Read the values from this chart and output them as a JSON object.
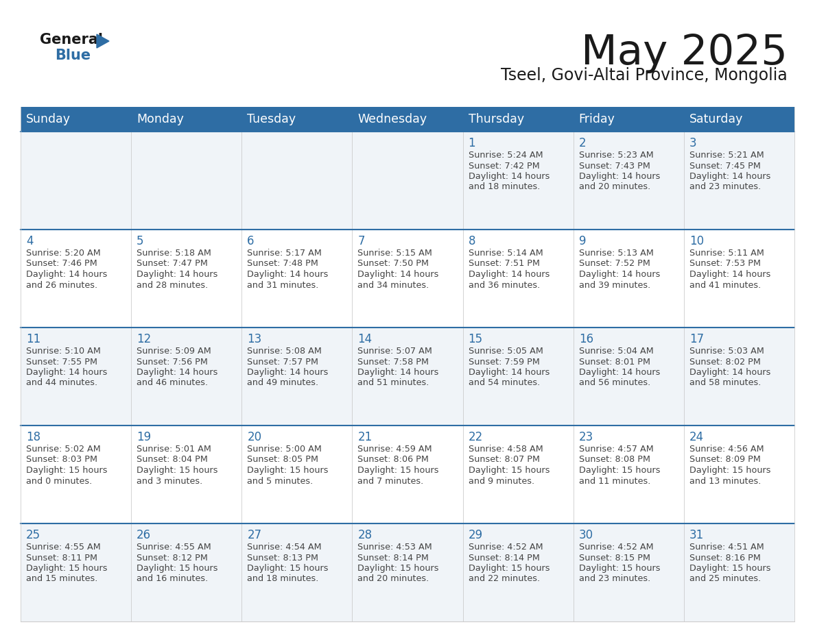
{
  "title": "May 2025",
  "subtitle": "Tseel, Govi-Altai Province, Mongolia",
  "days_of_week": [
    "Sunday",
    "Monday",
    "Tuesday",
    "Wednesday",
    "Thursday",
    "Friday",
    "Saturday"
  ],
  "header_bg": "#2E6DA4",
  "header_text": "#FFFFFF",
  "row_bg_odd": "#F0F4F8",
  "row_bg_even": "#FFFFFF",
  "cell_border_h": "#2E6DA4",
  "cell_border_v": "#CCCCCC",
  "day_text_color": "#2E6DA4",
  "info_text_color": "#444444",
  "title_color": "#1a1a1a",
  "logo_general_color": "#1a1a1a",
  "logo_blue_color": "#2E6DA4",
  "logo_triangle_color": "#2E6DA4",
  "calendar_data": [
    [
      null,
      null,
      null,
      null,
      {
        "day": 1,
        "sunrise": "5:24 AM",
        "sunset": "7:42 PM",
        "daylight": "14 hours",
        "daylight2": "and 18 minutes."
      },
      {
        "day": 2,
        "sunrise": "5:23 AM",
        "sunset": "7:43 PM",
        "daylight": "14 hours",
        "daylight2": "and 20 minutes."
      },
      {
        "day": 3,
        "sunrise": "5:21 AM",
        "sunset": "7:45 PM",
        "daylight": "14 hours",
        "daylight2": "and 23 minutes."
      }
    ],
    [
      {
        "day": 4,
        "sunrise": "5:20 AM",
        "sunset": "7:46 PM",
        "daylight": "14 hours",
        "daylight2": "and 26 minutes."
      },
      {
        "day": 5,
        "sunrise": "5:18 AM",
        "sunset": "7:47 PM",
        "daylight": "14 hours",
        "daylight2": "and 28 minutes."
      },
      {
        "day": 6,
        "sunrise": "5:17 AM",
        "sunset": "7:48 PM",
        "daylight": "14 hours",
        "daylight2": "and 31 minutes."
      },
      {
        "day": 7,
        "sunrise": "5:15 AM",
        "sunset": "7:50 PM",
        "daylight": "14 hours",
        "daylight2": "and 34 minutes."
      },
      {
        "day": 8,
        "sunrise": "5:14 AM",
        "sunset": "7:51 PM",
        "daylight": "14 hours",
        "daylight2": "and 36 minutes."
      },
      {
        "day": 9,
        "sunrise": "5:13 AM",
        "sunset": "7:52 PM",
        "daylight": "14 hours",
        "daylight2": "and 39 minutes."
      },
      {
        "day": 10,
        "sunrise": "5:11 AM",
        "sunset": "7:53 PM",
        "daylight": "14 hours",
        "daylight2": "and 41 minutes."
      }
    ],
    [
      {
        "day": 11,
        "sunrise": "5:10 AM",
        "sunset": "7:55 PM",
        "daylight": "14 hours",
        "daylight2": "and 44 minutes."
      },
      {
        "day": 12,
        "sunrise": "5:09 AM",
        "sunset": "7:56 PM",
        "daylight": "14 hours",
        "daylight2": "and 46 minutes."
      },
      {
        "day": 13,
        "sunrise": "5:08 AM",
        "sunset": "7:57 PM",
        "daylight": "14 hours",
        "daylight2": "and 49 minutes."
      },
      {
        "day": 14,
        "sunrise": "5:07 AM",
        "sunset": "7:58 PM",
        "daylight": "14 hours",
        "daylight2": "and 51 minutes."
      },
      {
        "day": 15,
        "sunrise": "5:05 AM",
        "sunset": "7:59 PM",
        "daylight": "14 hours",
        "daylight2": "and 54 minutes."
      },
      {
        "day": 16,
        "sunrise": "5:04 AM",
        "sunset": "8:01 PM",
        "daylight": "14 hours",
        "daylight2": "and 56 minutes."
      },
      {
        "day": 17,
        "sunrise": "5:03 AM",
        "sunset": "8:02 PM",
        "daylight": "14 hours",
        "daylight2": "and 58 minutes."
      }
    ],
    [
      {
        "day": 18,
        "sunrise": "5:02 AM",
        "sunset": "8:03 PM",
        "daylight": "15 hours",
        "daylight2": "and 0 minutes."
      },
      {
        "day": 19,
        "sunrise": "5:01 AM",
        "sunset": "8:04 PM",
        "daylight": "15 hours",
        "daylight2": "and 3 minutes."
      },
      {
        "day": 20,
        "sunrise": "5:00 AM",
        "sunset": "8:05 PM",
        "daylight": "15 hours",
        "daylight2": "and 5 minutes."
      },
      {
        "day": 21,
        "sunrise": "4:59 AM",
        "sunset": "8:06 PM",
        "daylight": "15 hours",
        "daylight2": "and 7 minutes."
      },
      {
        "day": 22,
        "sunrise": "4:58 AM",
        "sunset": "8:07 PM",
        "daylight": "15 hours",
        "daylight2": "and 9 minutes."
      },
      {
        "day": 23,
        "sunrise": "4:57 AM",
        "sunset": "8:08 PM",
        "daylight": "15 hours",
        "daylight2": "and 11 minutes."
      },
      {
        "day": 24,
        "sunrise": "4:56 AM",
        "sunset": "8:09 PM",
        "daylight": "15 hours",
        "daylight2": "and 13 minutes."
      }
    ],
    [
      {
        "day": 25,
        "sunrise": "4:55 AM",
        "sunset": "8:11 PM",
        "daylight": "15 hours",
        "daylight2": "and 15 minutes."
      },
      {
        "day": 26,
        "sunrise": "4:55 AM",
        "sunset": "8:12 PM",
        "daylight": "15 hours",
        "daylight2": "and 16 minutes."
      },
      {
        "day": 27,
        "sunrise": "4:54 AM",
        "sunset": "8:13 PM",
        "daylight": "15 hours",
        "daylight2": "and 18 minutes."
      },
      {
        "day": 28,
        "sunrise": "4:53 AM",
        "sunset": "8:14 PM",
        "daylight": "15 hours",
        "daylight2": "and 20 minutes."
      },
      {
        "day": 29,
        "sunrise": "4:52 AM",
        "sunset": "8:14 PM",
        "daylight": "15 hours",
        "daylight2": "and 22 minutes."
      },
      {
        "day": 30,
        "sunrise": "4:52 AM",
        "sunset": "8:15 PM",
        "daylight": "15 hours",
        "daylight2": "and 23 minutes."
      },
      {
        "day": 31,
        "sunrise": "4:51 AM",
        "sunset": "8:16 PM",
        "daylight": "15 hours",
        "daylight2": "and 25 minutes."
      }
    ]
  ]
}
